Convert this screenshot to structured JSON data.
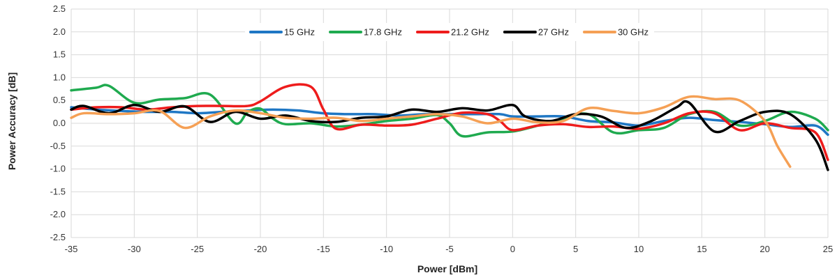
{
  "chart_data": {
    "type": "line",
    "title": "",
    "xlabel": "Power [dBm]",
    "ylabel": "Power Accuracy [dB]",
    "xlim": [
      -35,
      25
    ],
    "ylim": [
      -2.5,
      2.5
    ],
    "xticks": [
      -35,
      -30,
      -25,
      -20,
      -15,
      -10,
      -5,
      0,
      5,
      10,
      15,
      20,
      25
    ],
    "yticks": [
      -2.5,
      -2.0,
      -1.5,
      -1.0,
      -0.5,
      0.0,
      0.5,
      1.0,
      1.5,
      2.0,
      2.5
    ],
    "ytick_labels": [
      "-2.5",
      "-2.0",
      "-1.5",
      "-1.0",
      "-0.5",
      "0.0",
      "0.5",
      "1.0",
      "1.5",
      "2.0",
      "2.5"
    ],
    "grid": true,
    "legend_position": "top",
    "series": [
      {
        "name": "15 GHz",
        "color": "#1f77c4",
        "points": [
          [
            -35,
            0.35
          ],
          [
            -33,
            0.3
          ],
          [
            -31,
            0.27
          ],
          [
            -29,
            0.25
          ],
          [
            -27,
            0.25
          ],
          [
            -25,
            0.22
          ],
          [
            -23,
            0.25
          ],
          [
            -21,
            0.28
          ],
          [
            -19,
            0.3
          ],
          [
            -17,
            0.28
          ],
          [
            -15,
            0.22
          ],
          [
            -13,
            0.2
          ],
          [
            -11,
            0.2
          ],
          [
            -9,
            0.17
          ],
          [
            -7,
            0.2
          ],
          [
            -5,
            0.2
          ],
          [
            -3,
            0.2
          ],
          [
            -1,
            0.2
          ],
          [
            0,
            0.15
          ],
          [
            2,
            0.15
          ],
          [
            4,
            0.15
          ],
          [
            6,
            0.05
          ],
          [
            8,
            0.02
          ],
          [
            10,
            -0.05
          ],
          [
            12,
            0.05
          ],
          [
            14,
            0.12
          ],
          [
            16,
            0.07
          ],
          [
            18,
            0.03
          ],
          [
            20,
            -0.02
          ],
          [
            22,
            -0.08
          ],
          [
            24,
            -0.05
          ],
          [
            25,
            -0.25
          ]
        ]
      },
      {
        "name": "17.8 GHz",
        "color": "#1faa4f",
        "points": [
          [
            -35,
            0.72
          ],
          [
            -33,
            0.78
          ],
          [
            -32,
            0.82
          ],
          [
            -30,
            0.45
          ],
          [
            -28,
            0.52
          ],
          [
            -26,
            0.55
          ],
          [
            -24,
            0.63
          ],
          [
            -22,
            0.0
          ],
          [
            -21,
            0.25
          ],
          [
            -20,
            0.32
          ],
          [
            -19,
            0.1
          ],
          [
            -18,
            -0.02
          ],
          [
            -16,
            0.0
          ],
          [
            -14,
            -0.07
          ],
          [
            -12,
            -0.03
          ],
          [
            -10,
            0.05
          ],
          [
            -8,
            0.1
          ],
          [
            -6,
            0.18
          ],
          [
            -5,
            0.0
          ],
          [
            -4,
            -0.28
          ],
          [
            -2,
            -0.2
          ],
          [
            0,
            -0.18
          ],
          [
            2,
            -0.05
          ],
          [
            4,
            0.1
          ],
          [
            6,
            0.2
          ],
          [
            8,
            -0.2
          ],
          [
            10,
            -0.15
          ],
          [
            12,
            -0.1
          ],
          [
            14,
            0.2
          ],
          [
            16,
            0.25
          ],
          [
            18,
            -0.05
          ],
          [
            20,
            0.05
          ],
          [
            22,
            0.25
          ],
          [
            24,
            0.1
          ],
          [
            25,
            -0.15
          ]
        ]
      },
      {
        "name": "21.2 GHz",
        "color": "#ee1c1c",
        "points": [
          [
            -35,
            0.3
          ],
          [
            -33,
            0.35
          ],
          [
            -31,
            0.35
          ],
          [
            -29,
            0.3
          ],
          [
            -27,
            0.35
          ],
          [
            -25,
            0.38
          ],
          [
            -23,
            0.38
          ],
          [
            -21,
            0.38
          ],
          [
            -20,
            0.48
          ],
          [
            -18,
            0.8
          ],
          [
            -16,
            0.8
          ],
          [
            -15,
            0.3
          ],
          [
            -14,
            -0.12
          ],
          [
            -12,
            -0.03
          ],
          [
            -10,
            -0.05
          ],
          [
            -8,
            -0.03
          ],
          [
            -6,
            0.1
          ],
          [
            -4,
            0.23
          ],
          [
            -2,
            0.2
          ],
          [
            -1,
            0.05
          ],
          [
            0,
            -0.15
          ],
          [
            2,
            -0.05
          ],
          [
            4,
            -0.02
          ],
          [
            6,
            -0.08
          ],
          [
            8,
            -0.07
          ],
          [
            10,
            -0.12
          ],
          [
            12,
            0.0
          ],
          [
            14,
            0.22
          ],
          [
            16,
            0.22
          ],
          [
            18,
            -0.15
          ],
          [
            20,
            0.0
          ],
          [
            22,
            -0.1
          ],
          [
            24,
            -0.2
          ],
          [
            25,
            -0.8
          ]
        ]
      },
      {
        "name": "27 GHz",
        "color": "#000000",
        "points": [
          [
            -35,
            0.3
          ],
          [
            -34,
            0.38
          ],
          [
            -32,
            0.22
          ],
          [
            -30,
            0.4
          ],
          [
            -28,
            0.25
          ],
          [
            -26,
            0.37
          ],
          [
            -24,
            0.03
          ],
          [
            -22,
            0.25
          ],
          [
            -20,
            0.1
          ],
          [
            -18,
            0.17
          ],
          [
            -16,
            0.05
          ],
          [
            -14,
            0.03
          ],
          [
            -12,
            0.12
          ],
          [
            -10,
            0.15
          ],
          [
            -8,
            0.3
          ],
          [
            -6,
            0.25
          ],
          [
            -4,
            0.33
          ],
          [
            -2,
            0.28
          ],
          [
            0,
            0.4
          ],
          [
            1,
            0.15
          ],
          [
            3,
            0.05
          ],
          [
            5,
            0.2
          ],
          [
            7,
            0.15
          ],
          [
            9,
            -0.1
          ],
          [
            11,
            0.05
          ],
          [
            13,
            0.35
          ],
          [
            14,
            0.45
          ],
          [
            16,
            -0.18
          ],
          [
            18,
            0.05
          ],
          [
            20,
            0.25
          ],
          [
            22,
            0.2
          ],
          [
            24,
            -0.35
          ],
          [
            25,
            -1.02
          ]
        ]
      },
      {
        "name": "30 GHz",
        "color": "#f5a055",
        "points": [
          [
            -35,
            0.12
          ],
          [
            -34,
            0.22
          ],
          [
            -32,
            0.2
          ],
          [
            -30,
            0.22
          ],
          [
            -28,
            0.27
          ],
          [
            -26,
            -0.1
          ],
          [
            -24,
            0.15
          ],
          [
            -22,
            0.28
          ],
          [
            -20,
            0.22
          ],
          [
            -18,
            0.12
          ],
          [
            -16,
            0.1
          ],
          [
            -14,
            0.12
          ],
          [
            -12,
            0.05
          ],
          [
            -10,
            0.1
          ],
          [
            -8,
            0.15
          ],
          [
            -6,
            0.2
          ],
          [
            -4,
            0.15
          ],
          [
            -2,
            0.0
          ],
          [
            0,
            0.1
          ],
          [
            2,
            0.02
          ],
          [
            4,
            0.05
          ],
          [
            6,
            0.33
          ],
          [
            8,
            0.27
          ],
          [
            10,
            0.22
          ],
          [
            12,
            0.35
          ],
          [
            14,
            0.58
          ],
          [
            16,
            0.53
          ],
          [
            18,
            0.5
          ],
          [
            20,
            0.05
          ],
          [
            21,
            -0.5
          ],
          [
            22,
            -0.95
          ]
        ]
      }
    ]
  }
}
